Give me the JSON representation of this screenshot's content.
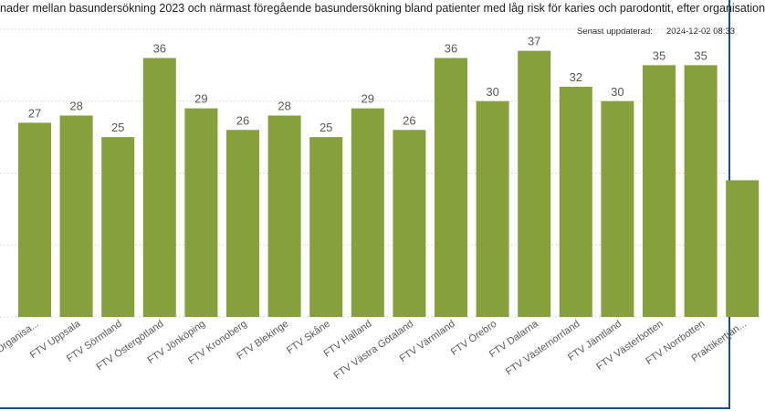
{
  "title": "nader mellan basundersökning 2023 och närmast föregående basundersökning bland patienter med låg risk för karies och parodontit, efter organisation",
  "updated": {
    "label": "Senast uppdaterad:",
    "value": "2024-12-02 08:33"
  },
  "colors": {
    "bar": "#86a03b",
    "grid": "#d9d9d9",
    "label": "#595959",
    "frame": "#1f4e79"
  },
  "chart_data": {
    "type": "bar",
    "categories": [
      "Organisa...",
      "FTV Uppsala",
      "FTV Sörmland",
      "FTV Östergötland",
      "FTV Jönköping",
      "FTV Kronoberg",
      "FTV Blekinge",
      "FTV Skåne",
      "FTV Halland",
      "FTV Västra Götaland",
      "FTV Värmland",
      "FTV Örebro",
      "FTV Dalarna",
      "FTV Västernorrland",
      "FTV Jämtland",
      "FTV Västerbotten",
      "FTV Norrbotten",
      "Praktikertjän..."
    ],
    "values": [
      27,
      28,
      25,
      36,
      29,
      26,
      28,
      25,
      29,
      26,
      36,
      30,
      37,
      32,
      30,
      35,
      35,
      19
    ],
    "data_labels": [
      "27",
      "28",
      "25",
      "36",
      "29",
      "26",
      "28",
      "25",
      "29",
      "26",
      "36",
      "30",
      "37",
      "32",
      "30",
      "35",
      "35",
      ""
    ],
    "ylim": [
      0,
      40
    ],
    "grid": true
  }
}
